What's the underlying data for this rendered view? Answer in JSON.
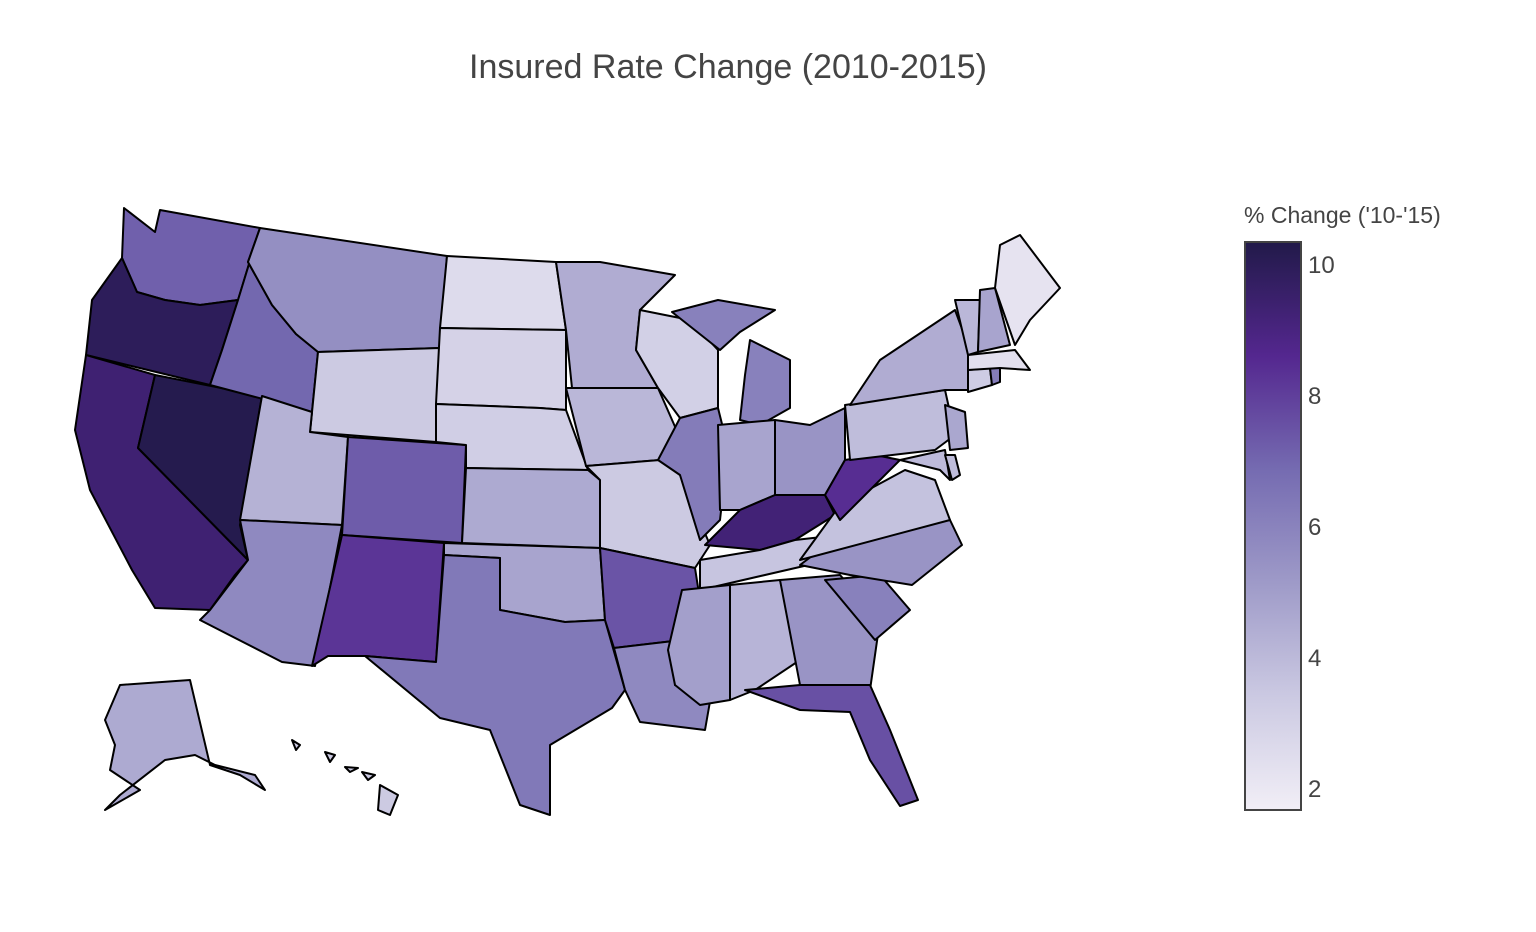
{
  "chart_data": {
    "type": "choropleth",
    "title": "Insured Rate Change (2010-2015)",
    "colorbar": {
      "title": "% Change ('10-'15)",
      "ticks": [
        "10",
        "8",
        "6",
        "4",
        "2"
      ],
      "range": [
        1.7,
        10.4
      ],
      "colors": [
        "#f1eef6",
        "#cbc9e2",
        "#9e9ac8",
        "#756bb1",
        "#54278f",
        "#221a4a"
      ]
    },
    "regions": [
      {
        "id": "WA",
        "value": 7.2
      },
      {
        "id": "OR",
        "value": 10.0
      },
      {
        "id": "CA",
        "value": 9.4
      },
      {
        "id": "NV",
        "value": 10.3
      },
      {
        "id": "ID",
        "value": 7.0
      },
      {
        "id": "MT",
        "value": 5.6
      },
      {
        "id": "WY",
        "value": 3.4
      },
      {
        "id": "UT",
        "value": 4.3
      },
      {
        "id": "AZ",
        "value": 5.8
      },
      {
        "id": "CO",
        "value": 7.3
      },
      {
        "id": "NM",
        "value": 8.3
      },
      {
        "id": "ND",
        "value": 2.6
      },
      {
        "id": "SD",
        "value": 3.0
      },
      {
        "id": "NE",
        "value": 3.2
      },
      {
        "id": "KS",
        "value": 4.6
      },
      {
        "id": "OK",
        "value": 4.8
      },
      {
        "id": "TX",
        "value": 6.4
      },
      {
        "id": "MN",
        "value": 4.5
      },
      {
        "id": "IA",
        "value": 4.1
      },
      {
        "id": "MO",
        "value": 3.4
      },
      {
        "id": "AR",
        "value": 7.5
      },
      {
        "id": "LA",
        "value": 5.8
      },
      {
        "id": "WI",
        "value": 3.1
      },
      {
        "id": "IL",
        "value": 6.3
      },
      {
        "id": "MI",
        "value": 6.1
      },
      {
        "id": "IN",
        "value": 4.8
      },
      {
        "id": "OH",
        "value": 5.4
      },
      {
        "id": "KY",
        "value": 9.3
      },
      {
        "id": "TN",
        "value": 3.6
      },
      {
        "id": "MS",
        "value": 5.0
      },
      {
        "id": "AL",
        "value": 4.2
      },
      {
        "id": "GA",
        "value": 5.4
      },
      {
        "id": "FL",
        "value": 7.6
      },
      {
        "id": "SC",
        "value": 6.1
      },
      {
        "id": "NC",
        "value": 5.4
      },
      {
        "id": "VA",
        "value": 3.7
      },
      {
        "id": "WV",
        "value": 8.5
      },
      {
        "id": "PA",
        "value": 3.9
      },
      {
        "id": "NY",
        "value": 4.5
      },
      {
        "id": "NJ",
        "value": 4.7
      },
      {
        "id": "DE",
        "value": 3.9
      },
      {
        "id": "MD",
        "value": 4.0
      },
      {
        "id": "CT",
        "value": 3.3
      },
      {
        "id": "RI",
        "value": 6.3
      },
      {
        "id": "MA",
        "value": 2.4
      },
      {
        "id": "VT",
        "value": 4.1
      },
      {
        "id": "NH",
        "value": 4.8
      },
      {
        "id": "ME",
        "value": 2.2
      },
      {
        "id": "AK",
        "value": 4.6
      },
      {
        "id": "HI",
        "value": 3.4
      }
    ]
  }
}
